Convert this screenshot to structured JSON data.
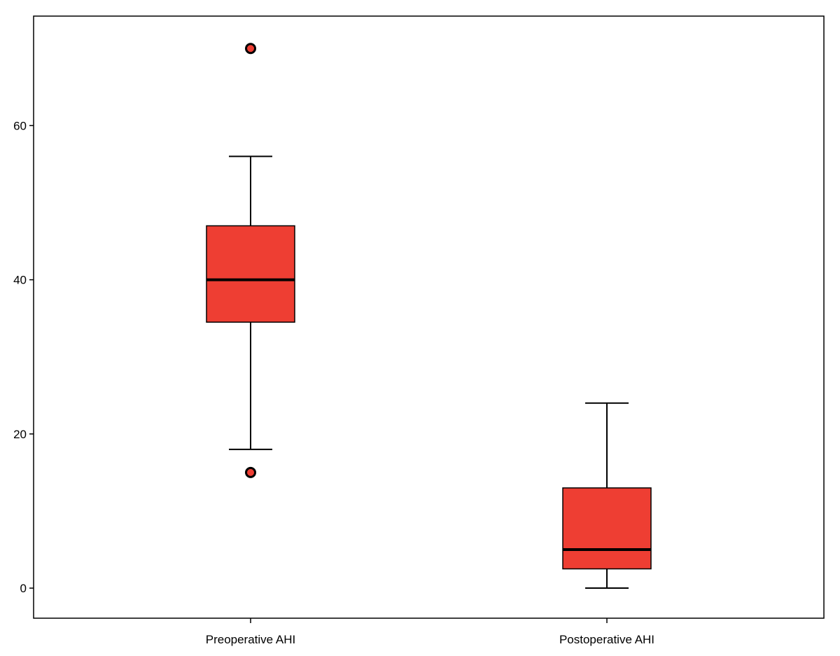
{
  "chart_data": {
    "type": "boxplot",
    "title": "",
    "xlabel": "",
    "ylabel": "",
    "ylim": [
      -3.9,
      74.2
    ],
    "y_ticks": [
      0,
      20,
      40,
      60
    ],
    "categories": [
      "Preoperative AHI",
      "Postoperative AHI"
    ],
    "boxes": [
      {
        "category": "Preoperative AHI",
        "whisker_low": 18,
        "q1": 34.5,
        "median": 40,
        "q3": 47,
        "whisker_high": 56,
        "outliers": [
          70,
          15
        ]
      },
      {
        "category": "Postoperative AHI",
        "whisker_low": 0,
        "q1": 2.5,
        "median": 5,
        "q3": 13,
        "whisker_high": 24,
        "outliers": []
      }
    ],
    "colors": {
      "box_fill": "#ee3e33",
      "outline": "#000000",
      "background": "#ffffff"
    },
    "grid": false,
    "legend": "none"
  }
}
